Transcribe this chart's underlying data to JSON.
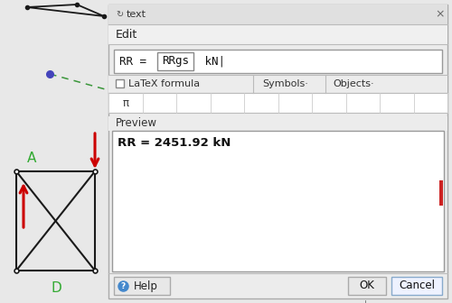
{
  "bg_color": "#e8e8e8",
  "dialog_bg": "#ececec",
  "title_text": "text",
  "edit_label": "Edit",
  "latex_checkbox": "□  LaTeX formula",
  "symbols_btn": "Symbols·",
  "objects_btn": "Objects·",
  "pi_symbol": "π",
  "preview_label": "Preview",
  "preview_content": "RR = 2451.92 kN",
  "help_btn": "Help",
  "ok_btn": "OK",
  "cancel_btn": "Cancel",
  "label_A": "A",
  "label_D": "D",
  "truss_color": "#1a1a1a",
  "arrow_color": "#cc0000",
  "dashed_color": "#3a963a",
  "dot_color": "#4444bb",
  "dialog_border": "#aaaaaa",
  "input_border": "#999999",
  "button_border": "#aaaaaa",
  "white": "#ffffff",
  "title_icon_color": "#555555",
  "help_icon_color": "#4488cc",
  "cancel_border": "#88aacc",
  "cancel_bg": "#eef2ff",
  "scrollbar_color": "#cc2222",
  "grid_line_color": "#cccccc",
  "separator_color": "#bbbbbb"
}
